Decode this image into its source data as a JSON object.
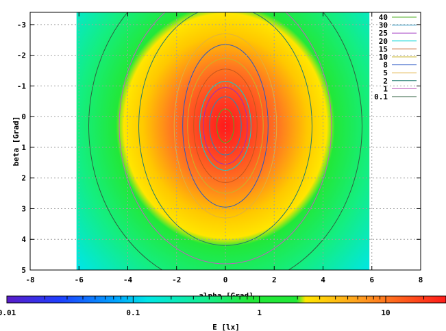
{
  "chart_data": {
    "type": "heatmap",
    "title": "",
    "xlabel": "alpha [Grad]",
    "ylabel": "beta [Grad]",
    "colorbar_label": "E [lx]",
    "xlim": [
      -8,
      8
    ],
    "ylim": [
      5,
      -3.4
    ],
    "x_ticks": [
      "-8",
      "-6",
      "-4",
      "-2",
      "0",
      "2",
      "4",
      "6",
      "8"
    ],
    "x_tick_values": [
      -8,
      -6,
      -4,
      -2,
      0,
      2,
      4,
      6,
      8
    ],
    "y_ticks": [
      "-3",
      "-2",
      "-1",
      "0",
      "1",
      "2",
      "3",
      "4",
      "5"
    ],
    "y_tick_values": [
      -3,
      -2,
      -1,
      0,
      1,
      2,
      3,
      4,
      5
    ],
    "data_x_range": [
      -6.1,
      5.9
    ],
    "colorbar_ticks": [
      "0.01",
      "0.1",
      "1",
      "10"
    ],
    "colorbar_tick_values": [
      0.01,
      0.1,
      1,
      10
    ],
    "colorbar_range": [
      0.01,
      30
    ],
    "colorbar_scale": "log",
    "grid": true,
    "legend_position": "top-right",
    "contours": [
      {
        "level": "40",
        "color": "#4caf20",
        "rx": 0.35,
        "ry": 0.55
      },
      {
        "level": "30",
        "color": "#1f8fbf",
        "rx": 0.65,
        "ry": 0.95
      },
      {
        "level": "25",
        "color": "#9a2fbf",
        "rx": 0.9,
        "ry": 1.25
      },
      {
        "level": "20",
        "color": "#00d5d5",
        "rx": 1.05,
        "ry": 1.45
      },
      {
        "level": "15",
        "color": "#c2561e",
        "rx": 1.3,
        "ry": 1.85
      },
      {
        "level": "10",
        "color": "#c8b428",
        "rx": 1.55,
        "ry": 2.2
      },
      {
        "level": "8",
        "color": "#2b57c4",
        "rx": 1.75,
        "ry": 2.65
      },
      {
        "level": "5",
        "color": "#e0b040",
        "rx": 2.1,
        "ry": 3.0
      },
      {
        "level": "2",
        "color": "#1f7a6e",
        "rx": 3.55,
        "ry": 3.9
      },
      {
        "level": "1",
        "color": "#c060c0",
        "rx": 4.35,
        "ry": 4.5
      },
      {
        "level": "0.1",
        "color": "#2f5f3f",
        "rx": 5.6,
        "ry": 5.3
      }
    ],
    "colors": {
      "peak": "#ff2020",
      "high": "#ff8a20",
      "mid": "#ffe400",
      "low": "#16e840",
      "lower": "#13f0a0",
      "lowest": "#00e5e5"
    }
  }
}
